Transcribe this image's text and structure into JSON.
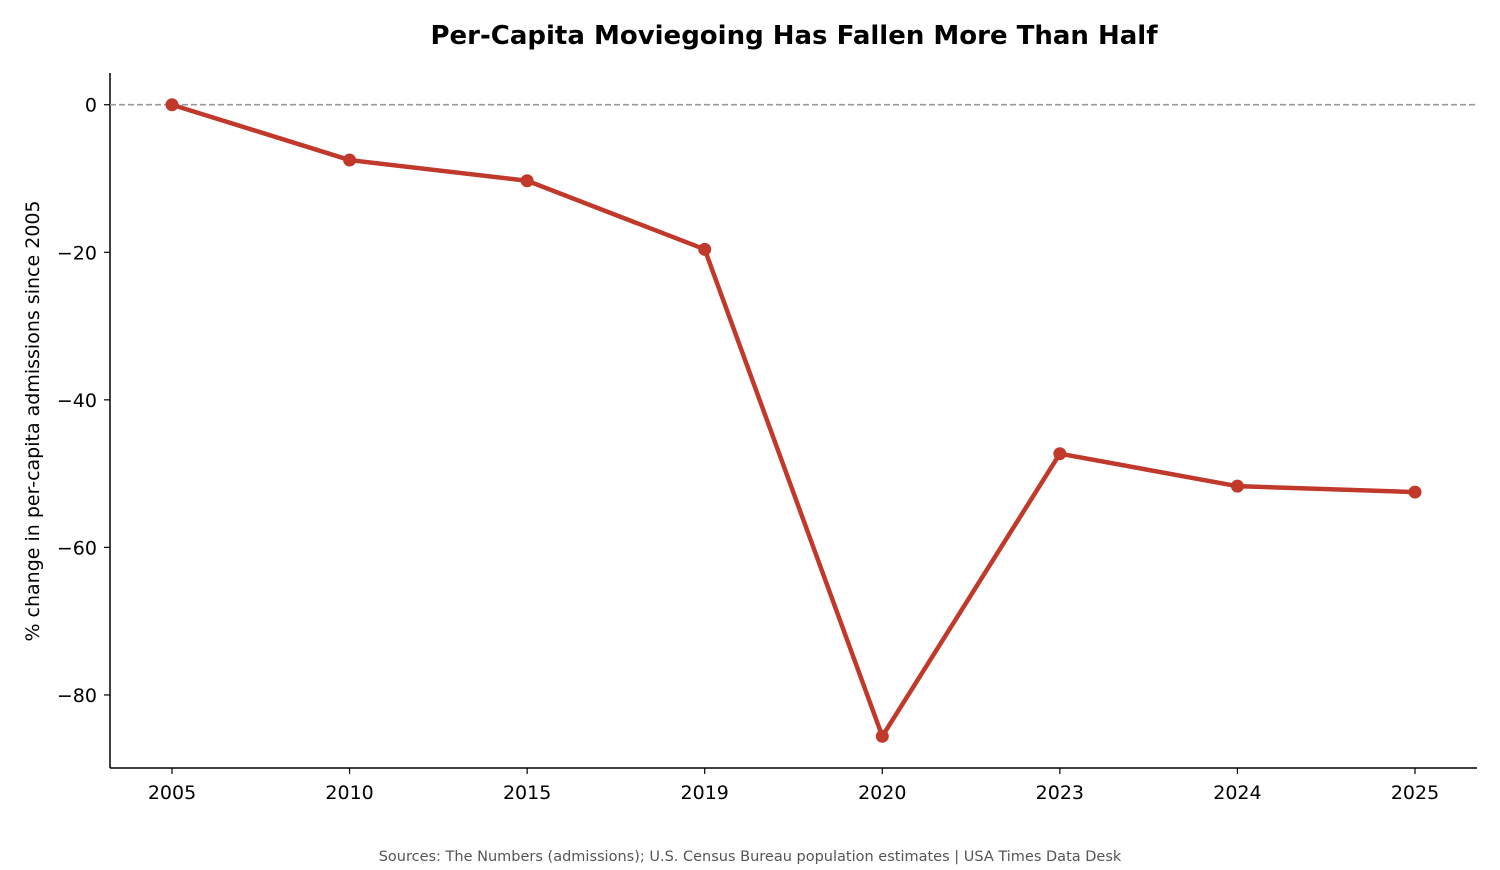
{
  "chart_data": {
    "type": "line",
    "title": "Per-Capita Moviegoing Has Fallen More Than Half",
    "ylabel": "% change in per-capita admissions since 2005",
    "xlabel": "",
    "categories": [
      "2005",
      "2010",
      "2015",
      "2019",
      "2020",
      "2023",
      "2024",
      "2025"
    ],
    "series": [
      {
        "values": [
          0,
          -7.5,
          -10.3,
          -19.6,
          -85.6,
          -47.3,
          -51.7,
          -52.5
        ],
        "color": "#c0392b"
      }
    ],
    "yticks": [
      0,
      -20,
      -40,
      -60,
      -80
    ],
    "ytick_labels": [
      "0",
      "−20",
      "−40",
      "−60",
      "−80"
    ],
    "ylim": [
      -89.9,
      4.3
    ],
    "reference_line": {
      "y": 0,
      "style": "dashed",
      "color": "#999999"
    },
    "grid": false,
    "legend": "none"
  },
  "footer": {
    "source": "Sources: The Numbers (admissions); U.S. Census Bureau population estimates | USA Times Data Desk"
  }
}
